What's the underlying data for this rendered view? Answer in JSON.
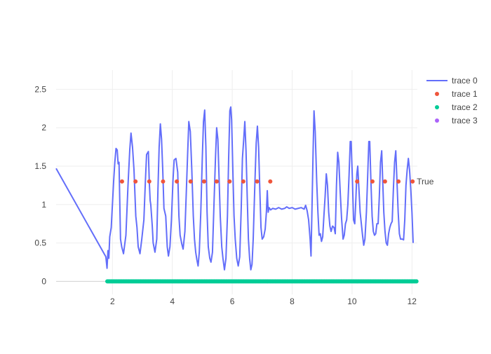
{
  "chart_data": {
    "type": "line",
    "title": "",
    "xlabel": "",
    "ylabel": "",
    "xlim": [
      0.12,
      12.18
    ],
    "ylim": [
      -0.17,
      2.75
    ],
    "x_ticks": [
      2,
      4,
      6,
      8,
      10,
      12
    ],
    "y_ticks": [
      0,
      0.5,
      1,
      1.5,
      2,
      2.5
    ],
    "grid": true,
    "legend_position": "top-right",
    "series": [
      {
        "name": "trace 0",
        "mode": "lines",
        "color": "#636efa",
        "points": [
          [
            0.12,
            1.47
          ],
          [
            1.78,
            0.32
          ],
          [
            1.82,
            0.17
          ],
          [
            1.85,
            0.4
          ],
          [
            1.88,
            0.3
          ],
          [
            1.91,
            0.58
          ],
          [
            1.96,
            0.7
          ],
          [
            2.0,
            1.0
          ],
          [
            2.04,
            1.3
          ],
          [
            2.08,
            1.55
          ],
          [
            2.12,
            1.73
          ],
          [
            2.16,
            1.71
          ],
          [
            2.19,
            1.53
          ],
          [
            2.22,
            1.55
          ],
          [
            2.27,
            0.55
          ],
          [
            2.31,
            0.45
          ],
          [
            2.37,
            0.36
          ],
          [
            2.45,
            0.6
          ],
          [
            2.52,
            1.25
          ],
          [
            2.58,
            1.72
          ],
          [
            2.62,
            1.93
          ],
          [
            2.67,
            1.75
          ],
          [
            2.72,
            1.45
          ],
          [
            2.78,
            0.85
          ],
          [
            2.82,
            0.7
          ],
          [
            2.86,
            0.45
          ],
          [
            2.92,
            0.36
          ],
          [
            2.98,
            0.55
          ],
          [
            3.05,
            0.8
          ],
          [
            3.1,
            1.3
          ],
          [
            3.14,
            1.65
          ],
          [
            3.2,
            1.69
          ],
          [
            3.23,
            1.3
          ],
          [
            3.26,
            1.05
          ],
          [
            3.28,
            1.0
          ],
          [
            3.33,
            0.72
          ],
          [
            3.36,
            0.5
          ],
          [
            3.42,
            0.38
          ],
          [
            3.48,
            0.55
          ],
          [
            3.52,
            1.2
          ],
          [
            3.56,
            1.75
          ],
          [
            3.6,
            2.05
          ],
          [
            3.64,
            1.85
          ],
          [
            3.68,
            1.45
          ],
          [
            3.72,
            0.95
          ],
          [
            3.78,
            0.85
          ],
          [
            3.83,
            0.45
          ],
          [
            3.87,
            0.33
          ],
          [
            3.92,
            0.45
          ],
          [
            3.97,
            0.8
          ],
          [
            4.02,
            1.3
          ],
          [
            4.06,
            1.58
          ],
          [
            4.12,
            1.6
          ],
          [
            4.18,
            1.42
          ],
          [
            4.22,
            0.85
          ],
          [
            4.26,
            0.6
          ],
          [
            4.32,
            0.48
          ],
          [
            4.36,
            0.42
          ],
          [
            4.42,
            0.65
          ],
          [
            4.47,
            1.2
          ],
          [
            4.51,
            1.65
          ],
          [
            4.55,
            2.08
          ],
          [
            4.6,
            1.95
          ],
          [
            4.65,
            1.45
          ],
          [
            4.7,
            0.85
          ],
          [
            4.74,
            0.55
          ],
          [
            4.78,
            0.38
          ],
          [
            4.82,
            0.28
          ],
          [
            4.86,
            0.2
          ],
          [
            4.9,
            0.38
          ],
          [
            4.95,
            0.9
          ],
          [
            5.0,
            1.6
          ],
          [
            5.04,
            2.08
          ],
          [
            5.08,
            2.23
          ],
          [
            5.12,
            1.75
          ],
          [
            5.16,
            0.9
          ],
          [
            5.2,
            0.45
          ],
          [
            5.25,
            0.3
          ],
          [
            5.29,
            0.25
          ],
          [
            5.34,
            0.38
          ],
          [
            5.39,
            1.0
          ],
          [
            5.44,
            1.6
          ],
          [
            5.48,
            2.0
          ],
          [
            5.52,
            1.85
          ],
          [
            5.56,
            1.35
          ],
          [
            5.6,
            0.85
          ],
          [
            5.65,
            0.45
          ],
          [
            5.69,
            0.3
          ],
          [
            5.74,
            0.15
          ],
          [
            5.79,
            0.3
          ],
          [
            5.84,
            0.85
          ],
          [
            5.88,
            1.6
          ],
          [
            5.92,
            2.22
          ],
          [
            5.95,
            2.27
          ],
          [
            5.98,
            2.1
          ],
          [
            6.02,
            1.45
          ],
          [
            6.06,
            0.85
          ],
          [
            6.1,
            0.55
          ],
          [
            6.15,
            0.3
          ],
          [
            6.2,
            0.2
          ],
          [
            6.25,
            0.32
          ],
          [
            6.3,
            0.95
          ],
          [
            6.34,
            1.6
          ],
          [
            6.38,
            1.83
          ],
          [
            6.42,
            2.08
          ],
          [
            6.46,
            1.7
          ],
          [
            6.5,
            1.1
          ],
          [
            6.54,
            0.55
          ],
          [
            6.58,
            0.3
          ],
          [
            6.62,
            0.15
          ],
          [
            6.66,
            0.22
          ],
          [
            6.7,
            0.55
          ],
          [
            6.75,
            1.2
          ],
          [
            6.8,
            1.8
          ],
          [
            6.84,
            2.02
          ],
          [
            6.88,
            1.75
          ],
          [
            6.92,
            1.2
          ],
          [
            6.96,
            0.7
          ],
          [
            7.0,
            0.55
          ],
          [
            7.05,
            0.58
          ],
          [
            7.1,
            0.68
          ],
          [
            7.14,
            0.9
          ],
          [
            7.17,
            1.18
          ],
          [
            7.2,
            0.9
          ],
          [
            7.23,
            0.96
          ],
          [
            7.28,
            0.93
          ],
          [
            7.35,
            0.95
          ],
          [
            7.45,
            0.94
          ],
          [
            7.55,
            0.96
          ],
          [
            7.65,
            0.94
          ],
          [
            7.75,
            0.95
          ],
          [
            7.82,
            0.97
          ],
          [
            7.9,
            0.95
          ],
          [
            8.0,
            0.96
          ],
          [
            8.1,
            0.94
          ],
          [
            8.2,
            0.95
          ],
          [
            8.3,
            0.96
          ],
          [
            8.4,
            0.94
          ],
          [
            8.45,
            0.99
          ],
          [
            8.5,
            0.92
          ],
          [
            8.55,
            0.8
          ],
          [
            8.6,
            0.55
          ],
          [
            8.63,
            0.33
          ],
          [
            8.66,
            0.9
          ],
          [
            8.7,
            1.7
          ],
          [
            8.73,
            2.22
          ],
          [
            8.77,
            1.95
          ],
          [
            8.82,
            1.3
          ],
          [
            8.86,
            0.9
          ],
          [
            8.9,
            0.6
          ],
          [
            8.94,
            0.62
          ],
          [
            8.98,
            0.52
          ],
          [
            9.02,
            0.58
          ],
          [
            9.06,
            0.85
          ],
          [
            9.1,
            1.1
          ],
          [
            9.14,
            1.4
          ],
          [
            9.18,
            1.25
          ],
          [
            9.22,
            0.9
          ],
          [
            9.26,
            0.72
          ],
          [
            9.3,
            0.65
          ],
          [
            9.35,
            0.72
          ],
          [
            9.4,
            0.7
          ],
          [
            9.44,
            0.62
          ],
          [
            9.48,
            1.25
          ],
          [
            9.52,
            1.68
          ],
          [
            9.56,
            1.55
          ],
          [
            9.6,
            1.2
          ],
          [
            9.65,
            0.82
          ],
          [
            9.7,
            0.55
          ],
          [
            9.74,
            0.6
          ],
          [
            9.78,
            0.75
          ],
          [
            9.82,
            0.8
          ],
          [
            9.86,
            1.0
          ],
          [
            9.9,
            1.38
          ],
          [
            9.94,
            1.82
          ],
          [
            9.97,
            1.82
          ],
          [
            10.01,
            1.35
          ],
          [
            10.05,
            0.8
          ],
          [
            10.09,
            0.75
          ],
          [
            10.12,
            1.0
          ],
          [
            10.16,
            1.4
          ],
          [
            10.19,
            1.5
          ],
          [
            10.23,
            1.2
          ],
          [
            10.27,
            0.9
          ],
          [
            10.31,
            0.75
          ],
          [
            10.35,
            0.6
          ],
          [
            10.39,
            0.47
          ],
          [
            10.43,
            0.55
          ],
          [
            10.48,
            0.9
          ],
          [
            10.52,
            1.35
          ],
          [
            10.56,
            1.82
          ],
          [
            10.59,
            1.82
          ],
          [
            10.63,
            1.3
          ],
          [
            10.67,
            0.85
          ],
          [
            10.71,
            0.65
          ],
          [
            10.75,
            0.6
          ],
          [
            10.79,
            0.62
          ],
          [
            10.83,
            0.75
          ],
          [
            10.87,
            0.75
          ],
          [
            10.91,
            1.1
          ],
          [
            10.95,
            1.55
          ],
          [
            10.99,
            1.7
          ],
          [
            11.02,
            1.35
          ],
          [
            11.06,
            0.9
          ],
          [
            11.1,
            0.65
          ],
          [
            11.14,
            0.5
          ],
          [
            11.18,
            0.47
          ],
          [
            11.22,
            0.62
          ],
          [
            11.26,
            0.7
          ],
          [
            11.3,
            0.75
          ],
          [
            11.34,
            0.78
          ],
          [
            11.38,
            1.2
          ],
          [
            11.42,
            1.55
          ],
          [
            11.46,
            1.7
          ],
          [
            11.5,
            1.3
          ],
          [
            11.54,
            0.9
          ],
          [
            11.58,
            0.62
          ],
          [
            11.62,
            0.55
          ],
          [
            11.68,
            0.55
          ],
          [
            11.72,
            0.54
          ],
          [
            11.76,
            0.8
          ],
          [
            11.8,
            1.25
          ],
          [
            11.84,
            1.45
          ],
          [
            11.88,
            1.6
          ],
          [
            11.92,
            1.45
          ],
          [
            11.96,
            1.2
          ],
          [
            12.0,
            0.9
          ],
          [
            12.04,
            0.5
          ]
        ]
      },
      {
        "name": "trace 1",
        "mode": "markers",
        "color": "#ef553b",
        "x": [
          2.32,
          2.77,
          3.23,
          3.69,
          4.15,
          4.61,
          5.06,
          5.48,
          5.91,
          6.37,
          6.83,
          7.27,
          10.17,
          10.68,
          11.1,
          11.55,
          12.02
        ],
        "y": [
          1.3,
          1.3,
          1.3,
          1.3,
          1.3,
          1.3,
          1.3,
          1.3,
          1.3,
          1.3,
          1.3,
          1.3,
          1.3,
          1.3,
          1.3,
          1.3,
          1.3
        ]
      },
      {
        "name": "trace 2",
        "mode": "markers",
        "color": "#00cc96",
        "x_start": 1.83,
        "x_end": 12.16,
        "x_step": 0.04,
        "y": 0
      },
      {
        "name": "trace 3",
        "mode": "markers",
        "color": "#ab63fa",
        "x": [],
        "y": []
      }
    ],
    "annotations": [
      {
        "text": "True",
        "x": 12.02,
        "y": 1.3
      }
    ]
  }
}
